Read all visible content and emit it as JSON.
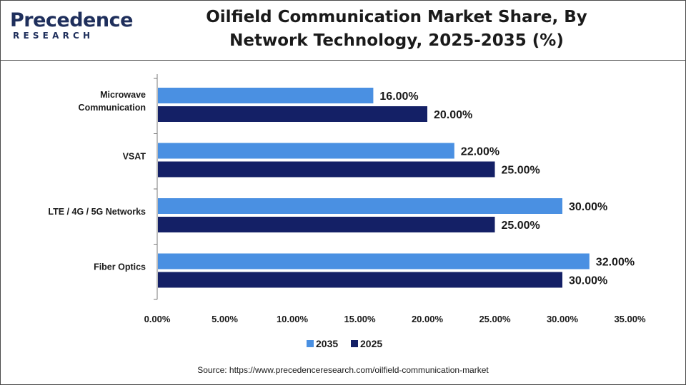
{
  "brand": {
    "logo_text": "Precedence",
    "logo_sub": "RESEARCH"
  },
  "title": "Oilfield Communication Market Share, By Network Technology, 2025-2035 (%)",
  "source": "Source: https://www.precedenceresearch.com/oilfield-communication-market",
  "colors": {
    "series_2035": "#4a90e2",
    "series_2025": "#142066"
  },
  "chart_data": {
    "type": "bar",
    "orientation": "horizontal",
    "categories": [
      "Microwave Communication",
      "VSAT",
      "LTE / 4G / 5G Networks",
      "Fiber Optics"
    ],
    "series": [
      {
        "name": "2035",
        "values": [
          16.0,
          22.0,
          30.0,
          32.0
        ]
      },
      {
        "name": "2025",
        "values": [
          20.0,
          25.0,
          25.0,
          30.0
        ]
      }
    ],
    "data_labels": [
      [
        "16.00%",
        "22.00%",
        "30.00%",
        "32.00%"
      ],
      [
        "20.00%",
        "25.00%",
        "25.00%",
        "30.00%"
      ]
    ],
    "x_ticks": [
      "0.00%",
      "5.00%",
      "10.00%",
      "15.00%",
      "20.00%",
      "25.00%",
      "30.00%",
      "35.00%"
    ],
    "xlim": [
      0,
      35
    ],
    "grid": false,
    "legend_position": "bottom-center"
  }
}
